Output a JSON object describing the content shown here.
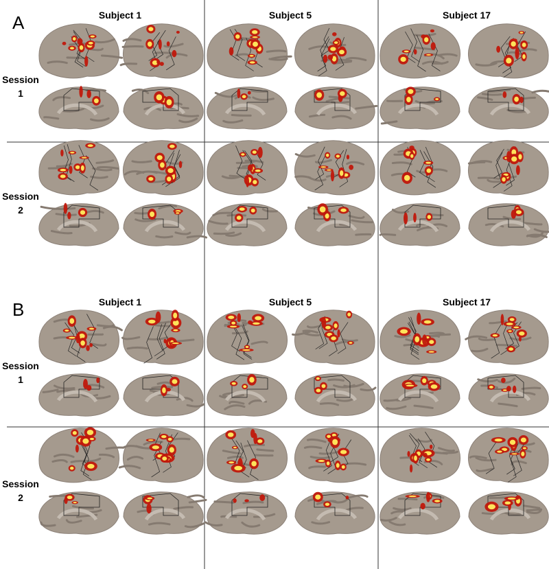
{
  "panels": [
    {
      "label": "A",
      "subjects": [
        "Subject 1",
        "Subject 5",
        "Subject 17"
      ],
      "sessions": [
        [
          "Session",
          "1"
        ],
        [
          "Session",
          "2"
        ]
      ]
    },
    {
      "label": "B",
      "subjects": [
        "Subject 1",
        "Subject 5",
        "Subject 17"
      ],
      "sessions": [
        [
          "Session",
          "1"
        ],
        [
          "Session",
          "2"
        ]
      ]
    }
  ]
}
